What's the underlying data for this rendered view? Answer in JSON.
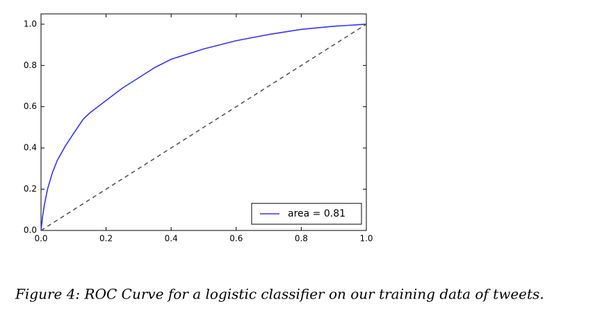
{
  "chart_data": {
    "type": "line",
    "xlim": [
      0,
      1
    ],
    "ylim": [
      0,
      1.05
    ],
    "xticks": [
      {
        "value": 0,
        "label": "0.0"
      },
      0.2,
      0.4,
      0.6,
      0.8,
      {
        "value": 1,
        "label": "1.0"
      }
    ],
    "yticks": [
      {
        "value": 0,
        "label": "0.0"
      },
      0.2,
      0.4,
      0.6,
      0.8,
      {
        "value": 1,
        "label": "1.0"
      }
    ],
    "legend": "lower right",
    "series": [
      {
        "name": "area = 0.81",
        "color": "#3333ff",
        "x": [
          0,
          0.005,
          0.01,
          0.02,
          0.035,
          0.05,
          0.075,
          0.1,
          0.13,
          0.15,
          0.2,
          0.25,
          0.3,
          0.35,
          0.4,
          0.5,
          0.6,
          0.7,
          0.8,
          0.9,
          1
        ],
        "values": [
          0,
          0.07,
          0.12,
          0.2,
          0.28,
          0.34,
          0.41,
          0.47,
          0.54,
          0.57,
          0.63,
          0.69,
          0.74,
          0.79,
          0.83,
          0.88,
          0.92,
          0.95,
          0.975,
          0.99,
          1
        ]
      },
      {
        "color": "#555555",
        "style": "dashed",
        "x": [
          0,
          1
        ],
        "values": [
          0,
          1
        ]
      }
    ]
  },
  "caption": "Figure 4: ROC Curve for a logistic classifier on our training data of tweets."
}
